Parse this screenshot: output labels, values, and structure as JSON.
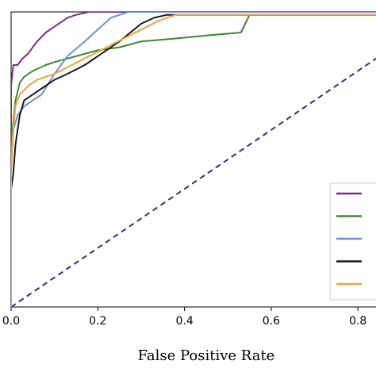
{
  "chart_data": {
    "type": "line",
    "title": "",
    "xlabel": "False Positive Rate",
    "ylabel": "",
    "xlim": [
      0,
      0.86
    ],
    "ylim": [
      0,
      1.0
    ],
    "xticks": [
      "0.0",
      "0.2",
      "0.4",
      "0.6",
      "0.8"
    ],
    "grid": false,
    "legend_position": "lower-right",
    "diagonal": {
      "x": [
        0,
        1
      ],
      "y": [
        0,
        1
      ],
      "color": "#2b2f8f",
      "style": "dashed"
    },
    "series": [
      {
        "color": "#7b2d8e",
        "x": [
          0.0,
          0.0,
          0.005,
          0.015,
          0.025,
          0.04,
          0.05,
          0.06,
          0.08,
          0.1,
          0.13,
          0.15,
          0.18,
          0.22,
          0.86
        ],
        "y": [
          0.0,
          0.75,
          0.82,
          0.82,
          0.84,
          0.86,
          0.88,
          0.9,
          0.93,
          0.95,
          0.98,
          0.99,
          1.0,
          1.0,
          1.0
        ]
      },
      {
        "color": "#3a8a2e",
        "x": [
          0.0,
          0.0,
          0.01,
          0.02,
          0.03,
          0.05,
          0.08,
          0.1,
          0.15,
          0.2,
          0.25,
          0.3,
          0.38,
          0.45,
          0.53,
          0.55,
          0.86
        ],
        "y": [
          0.0,
          0.55,
          0.7,
          0.76,
          0.78,
          0.8,
          0.82,
          0.83,
          0.85,
          0.87,
          0.88,
          0.9,
          0.91,
          0.92,
          0.93,
          0.99,
          0.99
        ]
      },
      {
        "color": "#6b8fdc",
        "x": [
          0.0,
          0.0,
          0.005,
          0.015,
          0.03,
          0.05,
          0.07,
          0.1,
          0.13,
          0.17,
          0.2,
          0.23,
          0.27,
          0.86
        ],
        "y": [
          0.0,
          0.5,
          0.6,
          0.65,
          0.68,
          0.7,
          0.72,
          0.79,
          0.85,
          0.9,
          0.94,
          0.98,
          1.0,
          1.0
        ]
      },
      {
        "color": "#1a1a1a",
        "x": [
          0.0,
          0.005,
          0.01,
          0.02,
          0.03,
          0.05,
          0.08,
          0.1,
          0.13,
          0.17,
          0.2,
          0.25,
          0.3,
          0.33,
          0.36,
          0.86
        ],
        "y": [
          0.4,
          0.45,
          0.55,
          0.65,
          0.7,
          0.72,
          0.75,
          0.77,
          0.79,
          0.82,
          0.85,
          0.9,
          0.96,
          0.98,
          0.99,
          0.99
        ]
      },
      {
        "color": "#f0a140",
        "x": [
          0.0,
          0.0,
          0.005,
          0.01,
          0.02,
          0.04,
          0.06,
          0.1,
          0.14,
          0.18,
          0.22,
          0.26,
          0.3,
          0.34,
          0.38,
          0.86
        ],
        "y": [
          0.0,
          0.45,
          0.6,
          0.68,
          0.72,
          0.75,
          0.77,
          0.79,
          0.82,
          0.85,
          0.88,
          0.91,
          0.94,
          0.97,
          0.99,
          0.99
        ]
      }
    ]
  }
}
